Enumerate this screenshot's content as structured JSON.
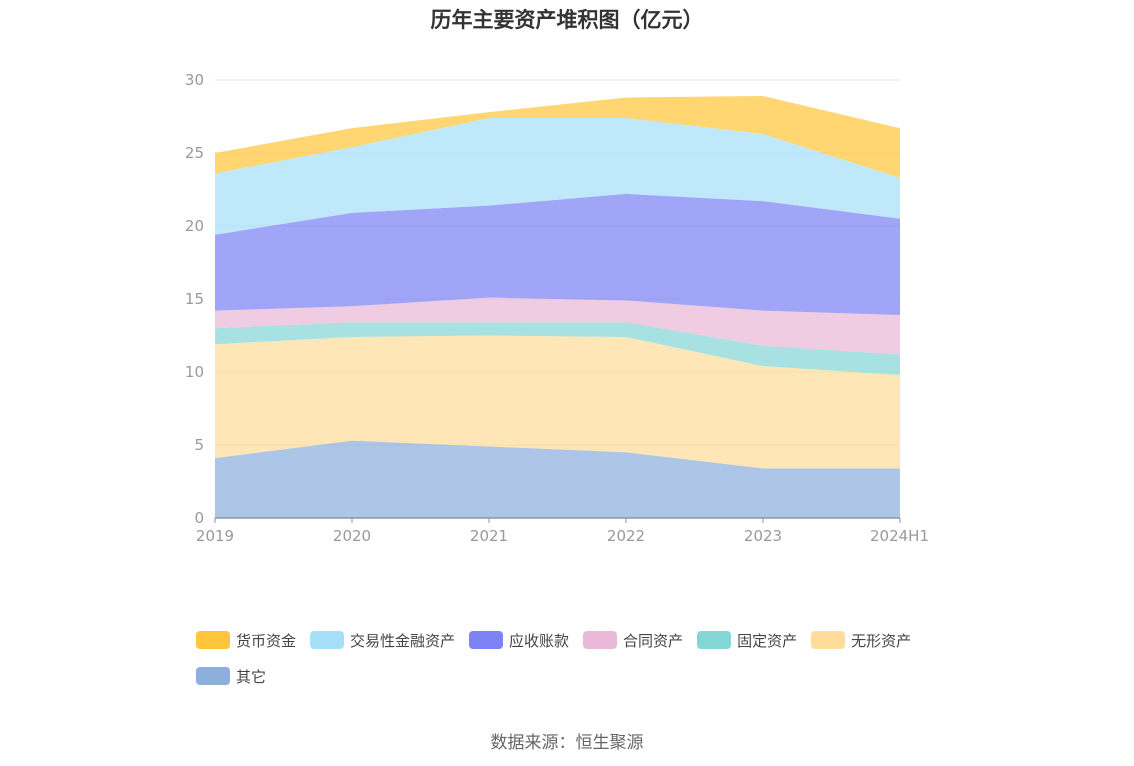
{
  "source_label": "数据来源：恒生聚源",
  "chart_data": {
    "type": "area",
    "stacked": true,
    "title": "历年主要资产堆积图（亿元）",
    "xlabel": "",
    "ylabel": "",
    "categories": [
      "2019",
      "2020",
      "2021",
      "2022",
      "2023",
      "2024H1"
    ],
    "ylim": [
      0,
      30
    ],
    "yticks": [
      0,
      5,
      10,
      15,
      20,
      25,
      30
    ],
    "grid": true,
    "legend_position": "bottom",
    "series": [
      {
        "name": "其它",
        "color": "#8eaedc",
        "values": [
          4.1,
          5.3,
          4.9,
          4.5,
          3.4,
          3.4
        ]
      },
      {
        "name": "无形资产",
        "color": "#fedc9a",
        "values": [
          7.8,
          7.1,
          7.6,
          7.9,
          7.0,
          6.4
        ]
      },
      {
        "name": "固定资产",
        "color": "#85d6d6",
        "values": [
          1.1,
          1.0,
          0.9,
          1.0,
          1.4,
          1.4
        ]
      },
      {
        "name": "合同资产",
        "color": "#eab8d8",
        "values": [
          1.2,
          1.1,
          1.7,
          1.5,
          2.4,
          2.7
        ]
      },
      {
        "name": "应收账款",
        "color": "#7d82f4",
        "values": [
          5.2,
          6.4,
          6.3,
          7.3,
          7.5,
          6.6
        ]
      },
      {
        "name": "交易性金融资产",
        "color": "#a6dffa",
        "values": [
          4.2,
          4.5,
          6.0,
          5.2,
          4.6,
          2.8
        ]
      },
      {
        "name": "货币资金",
        "color": "#ffc63c",
        "values": [
          1.4,
          1.3,
          0.4,
          1.4,
          2.6,
          3.4
        ]
      }
    ]
  }
}
